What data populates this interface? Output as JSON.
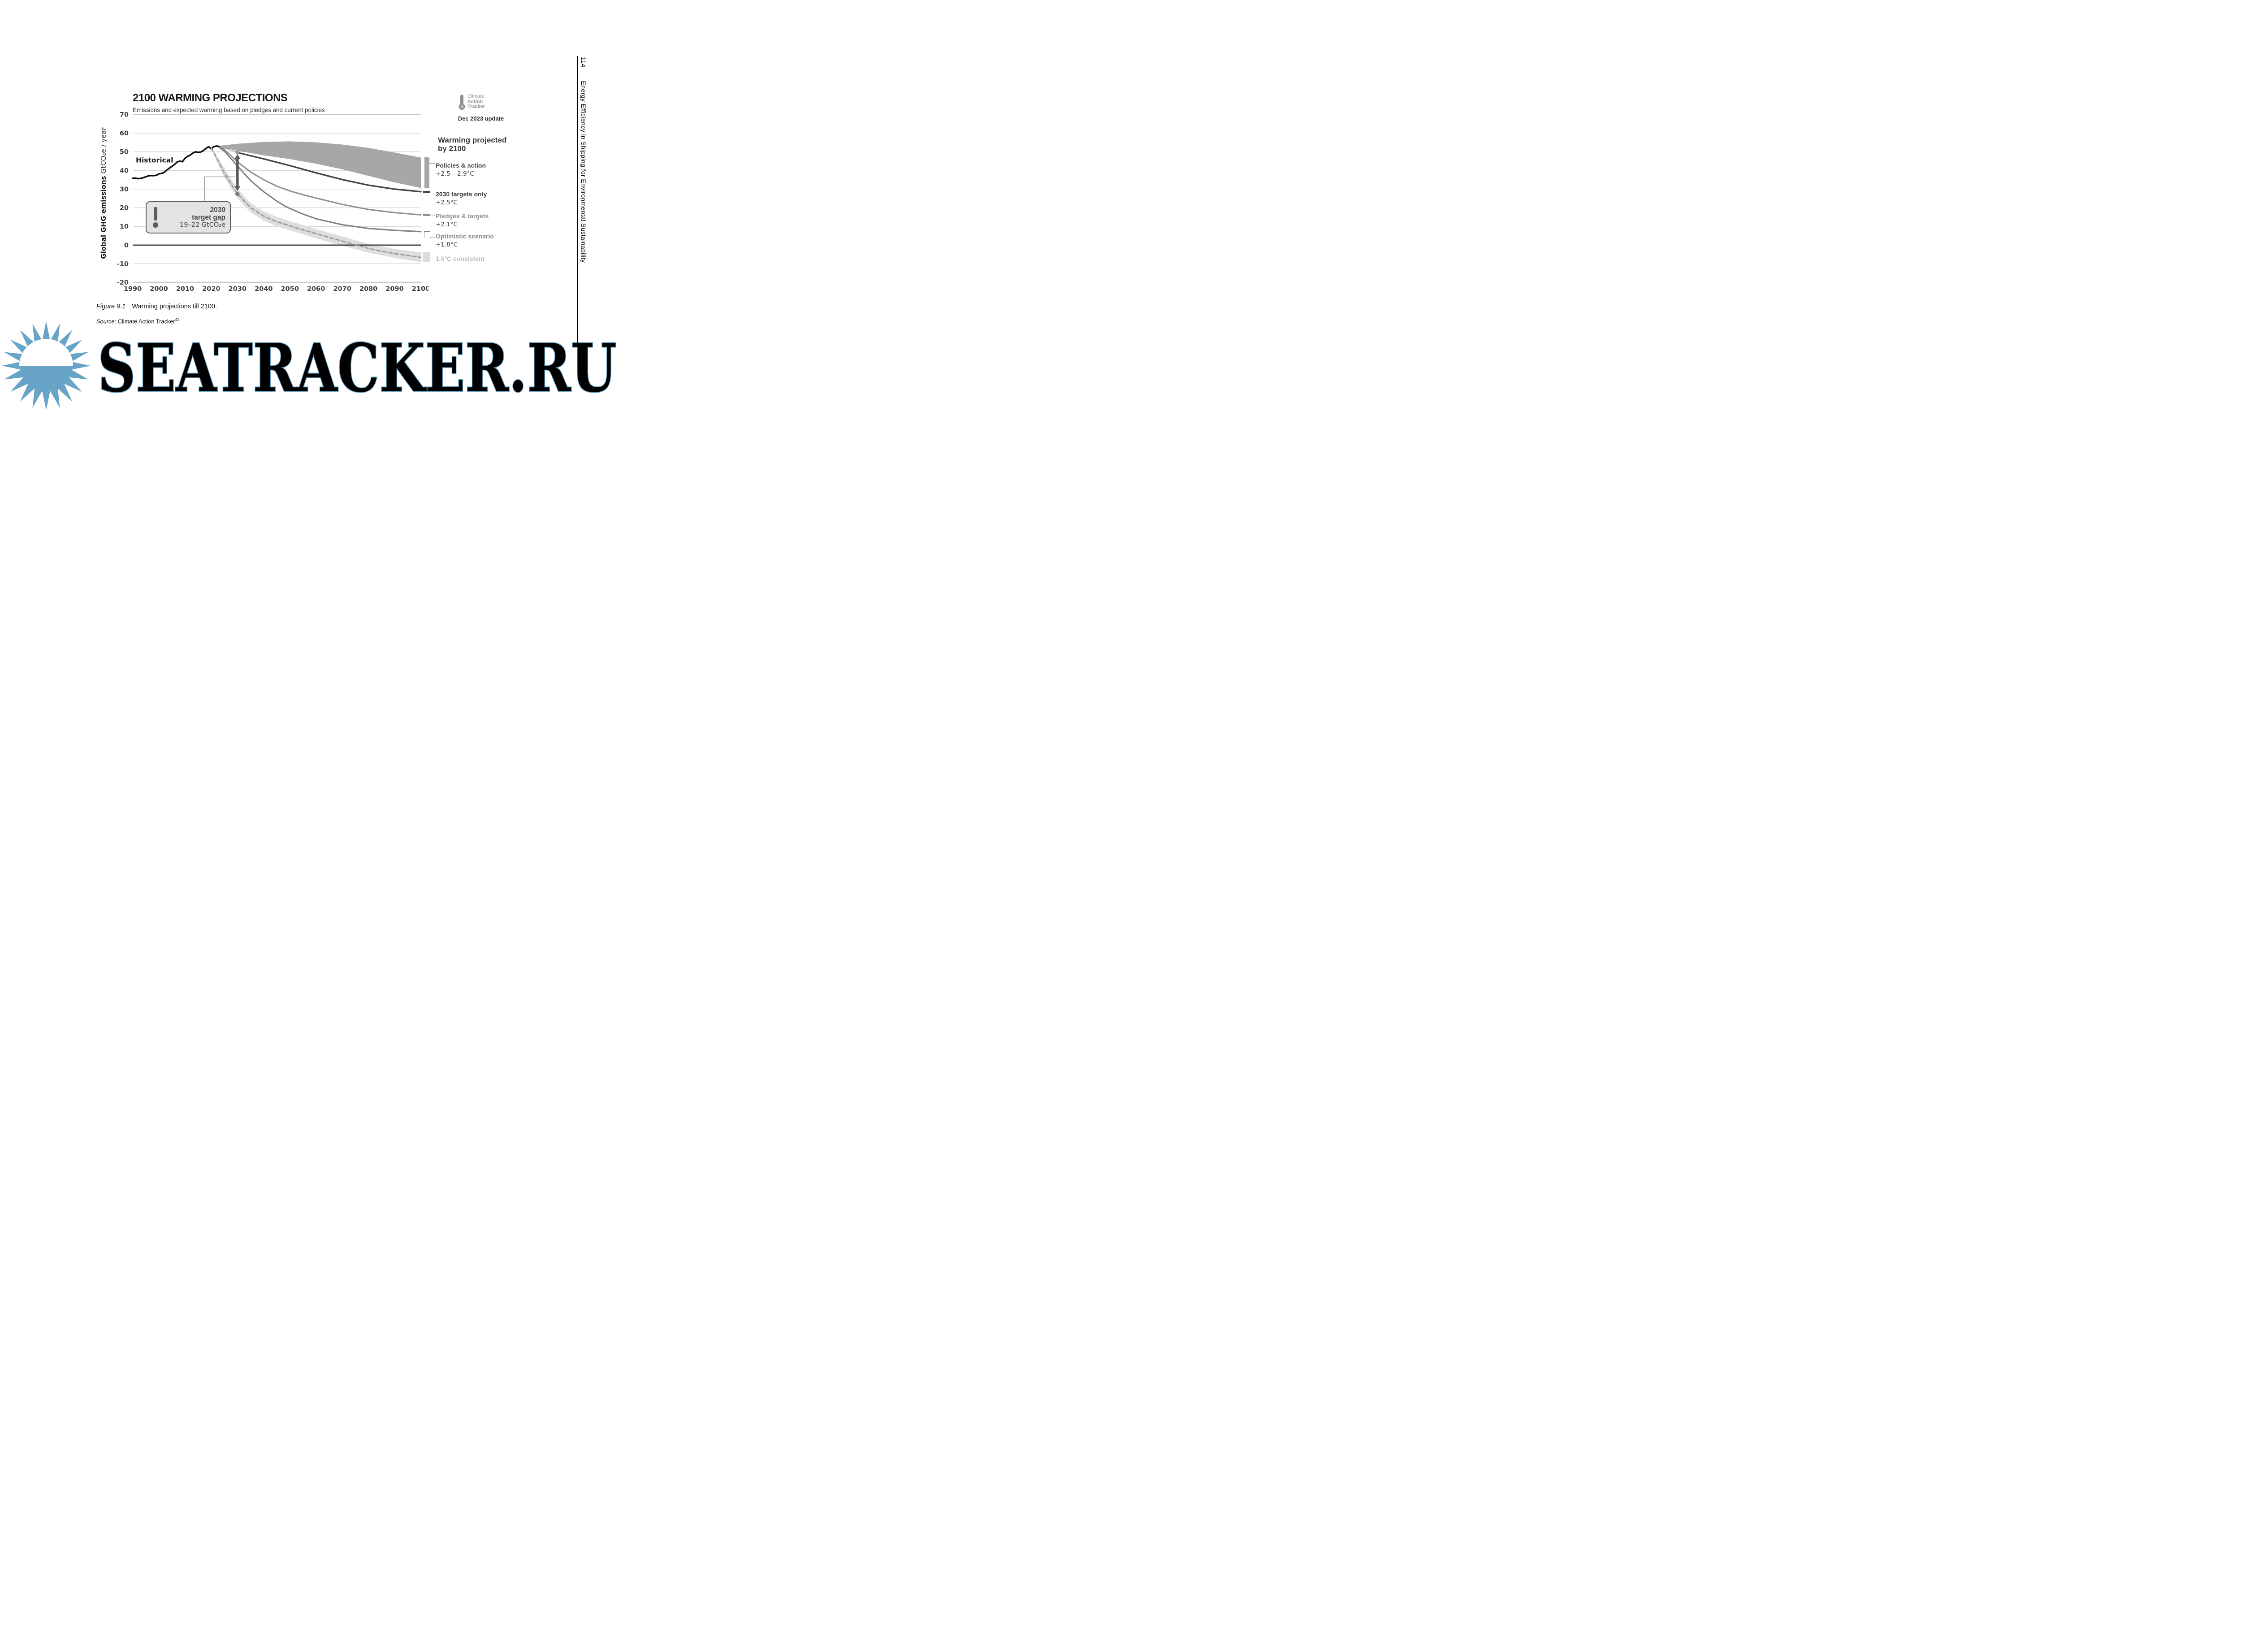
{
  "page": {
    "margin_header": {
      "page_number": "114",
      "book_title": "Energy Efficiency in Shipping for Environmental Sustainability"
    },
    "caption": {
      "figure_label": "Figure 9.1",
      "figure_text": "Warming projections till 2100.",
      "source_label": "Source",
      "source_text": ": Climate Action Tracker",
      "source_superscript": "43"
    },
    "watermark": {
      "text": "SEATRACKER.RU",
      "color": "#68a4c7"
    }
  },
  "chart": {
    "title": "2100 WARMING PROJECTIONS",
    "subtitle": "Emissions and expected warming based on pledges and current policies",
    "logo": {
      "line1": "Climate",
      "line2": "Action",
      "line3": "Tracker",
      "update": "Dec 2023 update"
    },
    "legend_heading_1": "Warming projected",
    "legend_heading_2": "by 2100",
    "legend": [
      {
        "label": "Policies & action",
        "temp": "+2.5 – 2.9°C",
        "label_color": "#4a4a4a",
        "temp_color": "#3f3f3f",
        "color": "#a7a7a7",
        "swatch": "band"
      },
      {
        "label": "2030 targets only",
        "temp": "+2.5°C",
        "label_color": "#3f3f3f",
        "temp_color": "#3f3f3f",
        "color": "#454545",
        "swatch": "thick-line"
      },
      {
        "label": "Pledges & targets",
        "temp": "+2.1°C",
        "label_color": "#919191",
        "temp_color": "#3f3f3f",
        "color": "#909090",
        "swatch": "line"
      },
      {
        "label": "Optimistic scenario",
        "temp": "+1.8°C",
        "label_color": "#8c8c8c",
        "temp_color": "#3f3f3f",
        "color": "#828282",
        "swatch": "bracket"
      },
      {
        "label": "1.5°C consistent",
        "temp": "",
        "label_color": "#b9b9b9",
        "temp_color": "#b9b9b9",
        "color": "#dcdcdc",
        "swatch": "square"
      }
    ],
    "annotation_box": {
      "line1": "2030",
      "line2": "target gap",
      "line3": "19–22 GtCO₂e"
    }
  },
  "chart_data": {
    "type": "line",
    "title": "2100 WARMING PROJECTIONS",
    "subtitle": "Emissions and expected warming based on pledges and current policies",
    "ylabel_bold": "Global GHG emissions",
    "ylabel_unit": "GtCO₂e / year",
    "xlim": [
      1990,
      2100
    ],
    "ylim": [
      -20,
      70
    ],
    "x_ticks": [
      1990,
      2000,
      2010,
      2020,
      2030,
      2040,
      2050,
      2060,
      2070,
      2080,
      2090,
      2100
    ],
    "y_ticks": [
      70,
      60,
      50,
      40,
      30,
      20,
      10,
      0,
      -10,
      -20
    ],
    "grid_color": "#c9c9c9",
    "series": [
      {
        "name": "Policies & action range",
        "type": "band",
        "color": "#a7a7a7",
        "top": [
          [
            2023,
            53.2
          ],
          [
            2030,
            54.3
          ],
          [
            2040,
            55.3
          ],
          [
            2050,
            55.6
          ],
          [
            2060,
            55.1
          ],
          [
            2070,
            53.9
          ],
          [
            2080,
            52.1
          ],
          [
            2090,
            49.6
          ],
          [
            2100,
            46.9
          ]
        ],
        "bottom": [
          [
            2023,
            52.6
          ],
          [
            2030,
            50.6
          ],
          [
            2040,
            48.1
          ],
          [
            2050,
            46.1
          ],
          [
            2060,
            43.6
          ],
          [
            2070,
            40.6
          ],
          [
            2080,
            37.1
          ],
          [
            2090,
            33.6
          ],
          [
            2100,
            30.6
          ]
        ]
      },
      {
        "name": "1.5°C consistent range",
        "type": "band",
        "color": "#dedede",
        "top": [
          [
            2020,
            52.6
          ],
          [
            2025,
            41.2
          ],
          [
            2030,
            30.2
          ],
          [
            2035,
            22.6
          ],
          [
            2040,
            18.1
          ],
          [
            2045,
            15.1
          ],
          [
            2050,
            12.9
          ],
          [
            2060,
            8.6
          ],
          [
            2070,
            4.6
          ],
          [
            2080,
            0.6
          ],
          [
            2090,
            -2.1
          ],
          [
            2100,
            -3.9
          ]
        ],
        "bottom": [
          [
            2020,
            51.2
          ],
          [
            2025,
            36.2
          ],
          [
            2030,
            25.1
          ],
          [
            2035,
            17.6
          ],
          [
            2040,
            13.1
          ],
          [
            2045,
            10.1
          ],
          [
            2050,
            7.9
          ],
          [
            2060,
            3.6
          ],
          [
            2070,
            -0.4
          ],
          [
            2080,
            -4.1
          ],
          [
            2090,
            -6.9
          ],
          [
            2100,
            -9.1
          ]
        ]
      },
      {
        "name": "fan connector",
        "type": "line",
        "color": "#9a9a9a",
        "width": 1.6,
        "points": [
          [
            2023,
            52.9
          ],
          [
            2030,
            49.8
          ]
        ]
      },
      {
        "name": "2030 targets only",
        "type": "line",
        "color": "#454545",
        "width": 3.4,
        "points": [
          [
            2030,
            49.6
          ],
          [
            2040,
            46.2
          ],
          [
            2050,
            42.6
          ],
          [
            2060,
            38.7
          ],
          [
            2070,
            35.1
          ],
          [
            2080,
            32.1
          ],
          [
            2090,
            30.0
          ],
          [
            2100,
            28.6
          ]
        ]
      },
      {
        "name": "Pledges & targets",
        "type": "line",
        "color": "#909090",
        "width": 3.1,
        "points": [
          [
            2023,
            52.6
          ],
          [
            2025,
            51.2
          ],
          [
            2030,
            44.6
          ],
          [
            2035,
            39.2
          ],
          [
            2040,
            35.0
          ],
          [
            2045,
            31.6
          ],
          [
            2050,
            29.0
          ],
          [
            2055,
            27.0
          ],
          [
            2060,
            25.2
          ],
          [
            2070,
            21.8
          ],
          [
            2080,
            19.1
          ],
          [
            2090,
            17.4
          ],
          [
            2100,
            16.2
          ]
        ]
      },
      {
        "name": "Optimistic scenario",
        "type": "line",
        "color": "#828282",
        "width": 3.1,
        "points": [
          [
            2023,
            52.4
          ],
          [
            2025,
            50.4
          ],
          [
            2030,
            42.4
          ],
          [
            2035,
            34.6
          ],
          [
            2040,
            28.6
          ],
          [
            2045,
            23.6
          ],
          [
            2048,
            21.0
          ],
          [
            2050,
            19.6
          ],
          [
            2055,
            16.6
          ],
          [
            2060,
            14.1
          ],
          [
            2070,
            10.9
          ],
          [
            2080,
            8.9
          ],
          [
            2090,
            7.9
          ],
          [
            2100,
            7.2
          ]
        ]
      },
      {
        "name": "Historical",
        "type": "line",
        "color": "#0f0f0f",
        "width": 3.5,
        "points": [
          [
            1990,
            35.8
          ],
          [
            1991,
            35.9
          ],
          [
            1992,
            35.6
          ],
          [
            1993,
            35.7
          ],
          [
            1994,
            36.1
          ],
          [
            1995,
            36.6
          ],
          [
            1996,
            37.1
          ],
          [
            1997,
            37.3
          ],
          [
            1998,
            37.2
          ],
          [
            1999,
            37.4
          ],
          [
            2000,
            38.2
          ],
          [
            2001,
            38.4
          ],
          [
            2002,
            38.9
          ],
          [
            2003,
            40.2
          ],
          [
            2004,
            41.2
          ],
          [
            2005,
            42.2
          ],
          [
            2006,
            43.2
          ],
          [
            2007,
            44.6
          ],
          [
            2008,
            45.0
          ],
          [
            2009,
            44.7
          ],
          [
            2010,
            46.6
          ],
          [
            2011,
            47.6
          ],
          [
            2012,
            48.3
          ],
          [
            2013,
            49.3
          ],
          [
            2014,
            50.0
          ],
          [
            2015,
            49.7
          ],
          [
            2016,
            49.9
          ],
          [
            2017,
            50.7
          ],
          [
            2018,
            51.9
          ],
          [
            2019,
            52.7
          ],
          [
            2020,
            51.6
          ],
          [
            2021,
            52.8
          ],
          [
            2022,
            53.1
          ],
          [
            2023,
            52.9
          ]
        ]
      },
      {
        "name": "1.5°C consistent",
        "type": "line",
        "color": "#9d9d9d",
        "width": 3.0,
        "dash": [
          8,
          5.5
        ],
        "points": [
          [
            2020,
            52.0
          ],
          [
            2022,
            46.8
          ],
          [
            2025,
            38.6
          ],
          [
            2030,
            27.4
          ],
          [
            2035,
            20.1
          ],
          [
            2040,
            15.5
          ],
          [
            2045,
            12.5
          ],
          [
            2050,
            10.3
          ],
          [
            2055,
            8.1
          ],
          [
            2060,
            6.1
          ],
          [
            2065,
            4.1
          ],
          [
            2070,
            2.1
          ],
          [
            2075,
            0.2
          ],
          [
            2080,
            -1.8
          ],
          [
            2085,
            -3.3
          ],
          [
            2090,
            -4.6
          ],
          [
            2095,
            -5.6
          ],
          [
            2100,
            -6.6
          ]
        ]
      }
    ],
    "annotations": {
      "gap_arrow": {
        "x": 2030,
        "y_top": 48.8,
        "y_bottom": 29.0,
        "color": "#595959"
      },
      "dots": [
        {
          "x": 2030,
          "y": 49.8,
          "color": "#9b9b9b"
        },
        {
          "x": 2030,
          "y": 27.4,
          "color": "#808080"
        }
      ],
      "connector": [
        [
          2017.4,
          23.6
        ],
        [
          2017.4,
          36.6
        ],
        [
          2029.2,
          36.6
        ]
      ],
      "historical_label": {
        "x": 1991.2,
        "y": 44.3,
        "text": "Historical"
      }
    },
    "legend_position": "right",
    "grid": true
  }
}
